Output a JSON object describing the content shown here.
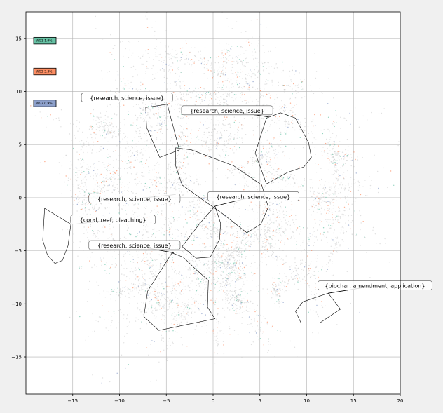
{
  "chart_data": {
    "type": "scatter",
    "title": "",
    "xlabel": "",
    "ylabel": "",
    "xlim": [
      -20,
      20
    ],
    "ylim": [
      -18.5,
      17.5
    ],
    "grid": true,
    "x_ticks": [
      -15,
      -10,
      -5,
      0,
      5,
      10,
      15,
      20
    ],
    "y_ticks": [
      -15,
      -10,
      -5,
      0,
      5,
      10,
      15
    ],
    "x_tick_labels": [
      "−15",
      "−10",
      "−5",
      "0",
      "5",
      "10",
      "15",
      "20"
    ],
    "y_tick_labels": [
      "−15",
      "−10",
      "−5",
      "0",
      "5",
      "10",
      "15"
    ],
    "legend_placement": "upper-left",
    "series": [
      {
        "label": "WG1 1.9%",
        "color": "#66c2a5",
        "legend_y": 14.8
      },
      {
        "label": "WG2 2.3%",
        "color": "#fc8d62",
        "legend_y": 11.9
      },
      {
        "label": "WG3 0.9%",
        "color": "#8da0cb",
        "legend_y": 8.9
      }
    ],
    "background_color": "#c8c8c8",
    "annotations": [
      {
        "text": "{research, science, issue}",
        "x": -5.2,
        "y": 9.3,
        "tx": -9.2,
        "ty": 9.4,
        "polygon": [
          [
            -7.2,
            8.5
          ],
          [
            -4.9,
            8.8
          ],
          [
            -3.6,
            4.5
          ],
          [
            -5.7,
            3.8
          ],
          [
            -7.1,
            6.6
          ]
        ]
      },
      {
        "text": "{research, science, issue}",
        "x": 6,
        "y": 7.6,
        "tx": 1.5,
        "ty": 8.2,
        "polygon": [
          [
            5.7,
            7.5
          ],
          [
            7.2,
            8
          ],
          [
            8.8,
            7.5
          ],
          [
            10.2,
            5.2
          ],
          [
            10.5,
            3.8
          ],
          [
            9.7,
            2.9
          ],
          [
            8,
            2.4
          ],
          [
            5.7,
            1.3
          ],
          [
            4.5,
            4.2
          ]
        ]
      },
      {
        "text": "{research, science, issue}",
        "x": -4,
        "y": 0.3,
        "tx": -8.4,
        "ty": -0.1,
        "polygon": [
          [
            -4,
            4.7
          ],
          [
            -2.3,
            4.5
          ],
          [
            2.2,
            3
          ],
          [
            5.2,
            1.2
          ],
          [
            5.9,
            -0.9
          ],
          [
            5.1,
            -2.5
          ],
          [
            3.6,
            -3.3
          ],
          [
            1,
            -1.5
          ],
          [
            -1.1,
            -0.2
          ],
          [
            -3.3,
            1.2
          ],
          [
            -4,
            3
          ]
        ]
      },
      {
        "text": "{research, science, issue}",
        "x": 0.2,
        "y": -0.8,
        "tx": 4.3,
        "ty": 0.1,
        "polygon": [
          [
            0.2,
            -0.8
          ],
          [
            -0.8,
            -1.8
          ],
          [
            -1.4,
            -2.4
          ],
          [
            -3.3,
            -4.6
          ],
          [
            -1.8,
            -5.7
          ],
          [
            -0.3,
            -5.6
          ],
          [
            0.7,
            -3.9
          ],
          [
            0.8,
            -2.4
          ]
        ]
      },
      {
        "text": "{coral, reef, bleaching}",
        "x": -14.9,
        "y": -2.5,
        "tx": -10.7,
        "ty": -2.1,
        "polygon": [
          [
            -18,
            -1
          ],
          [
            -15.2,
            -2.5
          ],
          [
            -15.5,
            -4.5
          ],
          [
            -16.1,
            -5.9
          ],
          [
            -16.9,
            -6.2
          ],
          [
            -17.7,
            -5.4
          ],
          [
            -18.2,
            -4
          ]
        ]
      },
      {
        "text": "{research, science, issue}",
        "x": -4.2,
        "y": -5.2,
        "tx": -8.4,
        "ty": -4.5,
        "polygon": [
          [
            -4.4,
            -5.2
          ],
          [
            -3.2,
            -5.6
          ],
          [
            -1.9,
            -6.7
          ],
          [
            -0.5,
            -7.8
          ],
          [
            -0.6,
            -10.3
          ],
          [
            0.2,
            -11.4
          ],
          [
            -5.8,
            -12.5
          ],
          [
            -7.4,
            -11.2
          ],
          [
            -7,
            -8.8
          ]
        ]
      },
      {
        "text": "{biochar, amendment, application}",
        "x": 12.3,
        "y": -9,
        "tx": 17.3,
        "ty": -8.3,
        "polygon": [
          [
            9.6,
            -9.8
          ],
          [
            12.3,
            -9
          ],
          [
            13.6,
            -10.5
          ],
          [
            11.4,
            -11.8
          ],
          [
            9.4,
            -11.8
          ],
          [
            8.8,
            -10.7
          ]
        ]
      }
    ]
  }
}
